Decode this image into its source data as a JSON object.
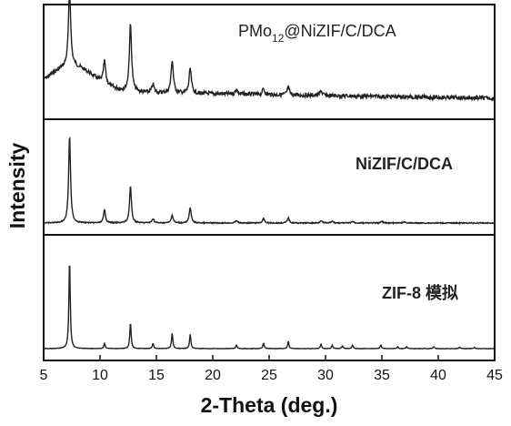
{
  "chart_data": {
    "type": "line",
    "xlabel": "2-Theta (deg.)",
    "ylabel": "Intensity",
    "xlim": [
      5,
      45
    ],
    "x_ticks": [
      "5",
      "10",
      "15",
      "20",
      "25",
      "30",
      "35",
      "40",
      "45"
    ],
    "series": [
      {
        "name": "PMo12@NiZIF/C/DCA",
        "label_main": "PMo",
        "label_sub": "12",
        "label_rest": "@NiZIF/C/DCA",
        "color": "#222222",
        "peaks": [
          {
            "x": 7.3,
            "h": 0.92
          },
          {
            "x": 10.4,
            "h": 0.27
          },
          {
            "x": 12.7,
            "h": 0.82
          },
          {
            "x": 14.7,
            "h": 0.1
          },
          {
            "x": 16.4,
            "h": 0.4
          },
          {
            "x": 18.0,
            "h": 0.3
          },
          {
            "x": 22.1,
            "h": 0.06
          },
          {
            "x": 24.5,
            "h": 0.07
          },
          {
            "x": 26.7,
            "h": 0.09
          },
          {
            "x": 29.6,
            "h": 0.06
          }
        ]
      },
      {
        "name": "NiZIF/C/DCA",
        "color": "#222222",
        "peaks": [
          {
            "x": 7.3,
            "h": 1.0
          },
          {
            "x": 10.4,
            "h": 0.15
          },
          {
            "x": 12.7,
            "h": 0.42
          },
          {
            "x": 14.7,
            "h": 0.05
          },
          {
            "x": 16.4,
            "h": 0.09
          },
          {
            "x": 18.0,
            "h": 0.18
          },
          {
            "x": 22.1,
            "h": 0.03
          },
          {
            "x": 24.5,
            "h": 0.05
          },
          {
            "x": 26.7,
            "h": 0.06
          },
          {
            "x": 29.6,
            "h": 0.03
          },
          {
            "x": 30.6,
            "h": 0.02
          },
          {
            "x": 32.4,
            "h": 0.02
          },
          {
            "x": 35.0,
            "h": 0.02
          },
          {
            "x": 37.0,
            "h": 0.015
          }
        ]
      },
      {
        "name": "ZIF-8 模拟",
        "color": "#222222",
        "peaks": [
          {
            "x": 7.3,
            "h": 1.0
          },
          {
            "x": 10.4,
            "h": 0.06
          },
          {
            "x": 12.7,
            "h": 0.29
          },
          {
            "x": 14.7,
            "h": 0.06
          },
          {
            "x": 16.4,
            "h": 0.17
          },
          {
            "x": 18.0,
            "h": 0.16
          },
          {
            "x": 22.1,
            "h": 0.04
          },
          {
            "x": 24.5,
            "h": 0.06
          },
          {
            "x": 26.7,
            "h": 0.08
          },
          {
            "x": 29.6,
            "h": 0.05
          },
          {
            "x": 30.6,
            "h": 0.04
          },
          {
            "x": 31.5,
            "h": 0.03
          },
          {
            "x": 32.4,
            "h": 0.04
          },
          {
            "x": 34.9,
            "h": 0.04
          },
          {
            "x": 36.4,
            "h": 0.02
          },
          {
            "x": 37.2,
            "h": 0.02
          },
          {
            "x": 39.6,
            "h": 0.02
          },
          {
            "x": 41.9,
            "h": 0.015
          },
          {
            "x": 43.2,
            "h": 0.015
          }
        ]
      }
    ]
  }
}
